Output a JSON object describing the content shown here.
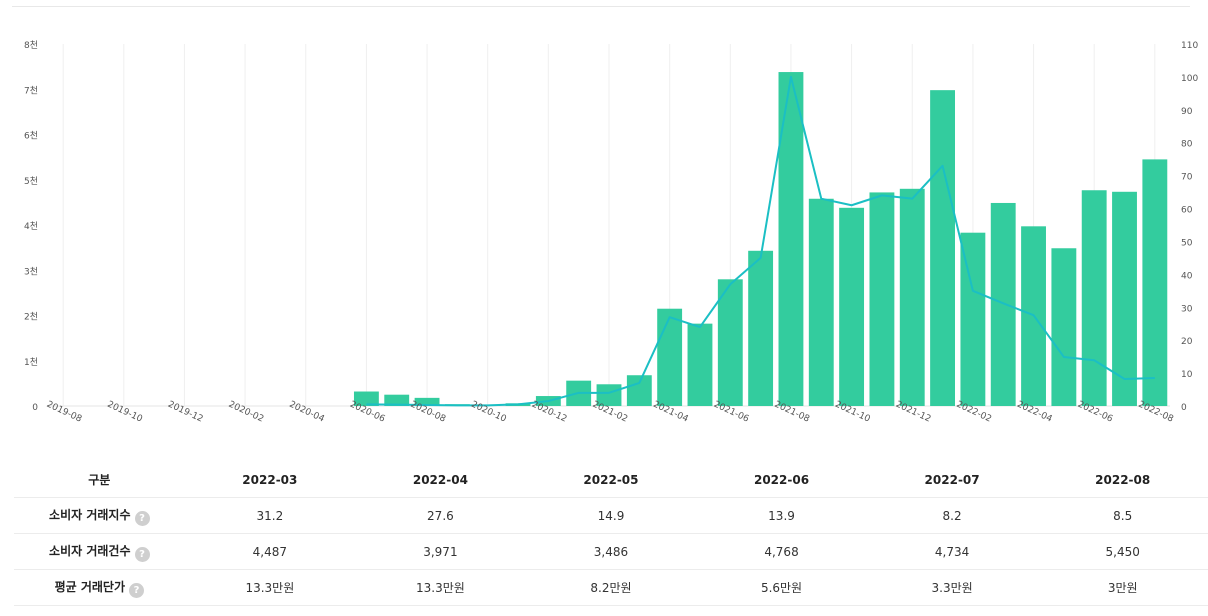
{
  "chart_data": {
    "type": "bar+line",
    "x": [
      "2019-08",
      "2019-09",
      "2019-10",
      "2019-11",
      "2019-12",
      "2020-01",
      "2020-02",
      "2020-03",
      "2020-04",
      "2020-05",
      "2020-06",
      "2020-07",
      "2020-08",
      "2020-09",
      "2020-10",
      "2020-11",
      "2020-12",
      "2021-01",
      "2021-02",
      "2021-03",
      "2021-04",
      "2021-05",
      "2021-06",
      "2021-07",
      "2021-08",
      "2021-09",
      "2021-10",
      "2021-11",
      "2021-12",
      "2022-01",
      "2022-02",
      "2022-03",
      "2022-04",
      "2022-05",
      "2022-06",
      "2022-07",
      "2022-08"
    ],
    "tick_labels": [
      "2019-08",
      "2019-10",
      "2019-12",
      "2020-02",
      "2020-04",
      "2020-06",
      "2020-08",
      "2020-10",
      "2020-12",
      "2021-02",
      "2021-04",
      "2021-06",
      "2021-08",
      "2021-10",
      "2021-12",
      "2022-02",
      "2022-04",
      "2022-06",
      "2022-08"
    ],
    "bar_series": {
      "name": "소비자 거래건수",
      "axis": "left",
      "color": "#33cc9e",
      "values": [
        0,
        0,
        0,
        0,
        0,
        0,
        0,
        0,
        0,
        0,
        320,
        250,
        180,
        40,
        30,
        60,
        220,
        560,
        480,
        680,
        2150,
        1820,
        2800,
        3430,
        7380,
        4580,
        4380,
        4720,
        4800,
        6980,
        3830,
        4487,
        3971,
        3486,
        4768,
        4734,
        5450
      ]
    },
    "line_series": {
      "name": "소비자 거래지수",
      "axis": "right",
      "color": "#1bbfc4",
      "values": [
        null,
        null,
        null,
        null,
        null,
        null,
        null,
        null,
        null,
        null,
        0.5,
        0.4,
        0.3,
        0.2,
        0.2,
        0.5,
        1.5,
        4,
        4,
        7,
        27,
        24,
        37,
        45,
        100,
        63,
        61,
        64,
        63,
        73,
        35,
        31.2,
        27.6,
        14.9,
        13.9,
        8.2,
        8.5
      ]
    },
    "left_axis": {
      "min": 0,
      "max": 8000,
      "ticks": [
        "0",
        "1천",
        "2천",
        "3천",
        "4천",
        "5천",
        "6천",
        "7천",
        "8천"
      ]
    },
    "right_axis": {
      "min": 0,
      "max": 110,
      "ticks": [
        "0",
        "10",
        "20",
        "30",
        "40",
        "50",
        "60",
        "70",
        "80",
        "90",
        "100",
        "110"
      ]
    },
    "grid": "vertical"
  },
  "table": {
    "header_label": "구분",
    "columns": [
      "2022-03",
      "2022-04",
      "2022-05",
      "2022-06",
      "2022-07",
      "2022-08"
    ],
    "help_icon": "?",
    "rows": [
      {
        "label": "소비자 거래지수",
        "values": [
          "31.2",
          "27.6",
          "14.9",
          "13.9",
          "8.2",
          "8.5"
        ]
      },
      {
        "label": "소비자 거래건수",
        "values": [
          "4,487",
          "3,971",
          "3,486",
          "4,768",
          "4,734",
          "5,450"
        ]
      },
      {
        "label": "평균 거래단가",
        "values": [
          "13.3만원",
          "13.3만원",
          "8.2만원",
          "5.6만원",
          "3.3만원",
          "3만원"
        ]
      }
    ]
  }
}
